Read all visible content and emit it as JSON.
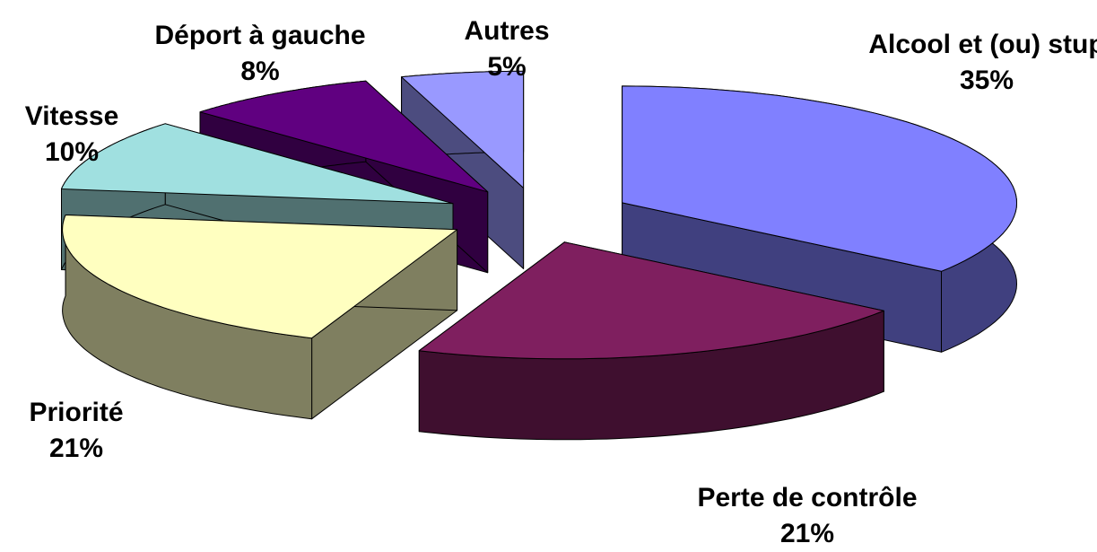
{
  "chart_data": {
    "type": "pie",
    "categories": [
      "Alcool et (ou) stup",
      "Perte de contrôle",
      "Priorité",
      "Vitesse",
      "Déport à gauche",
      "Autres"
    ],
    "values": [
      35,
      21,
      21,
      10,
      8,
      5
    ],
    "value_labels": [
      "35%",
      "21%",
      "21%",
      "10%",
      "8%",
      "5%"
    ],
    "colors": [
      "#8080ff",
      "#7f1f5f",
      "#ffffc0",
      "#a0e0e0",
      "#600080",
      "#9999ff"
    ]
  }
}
